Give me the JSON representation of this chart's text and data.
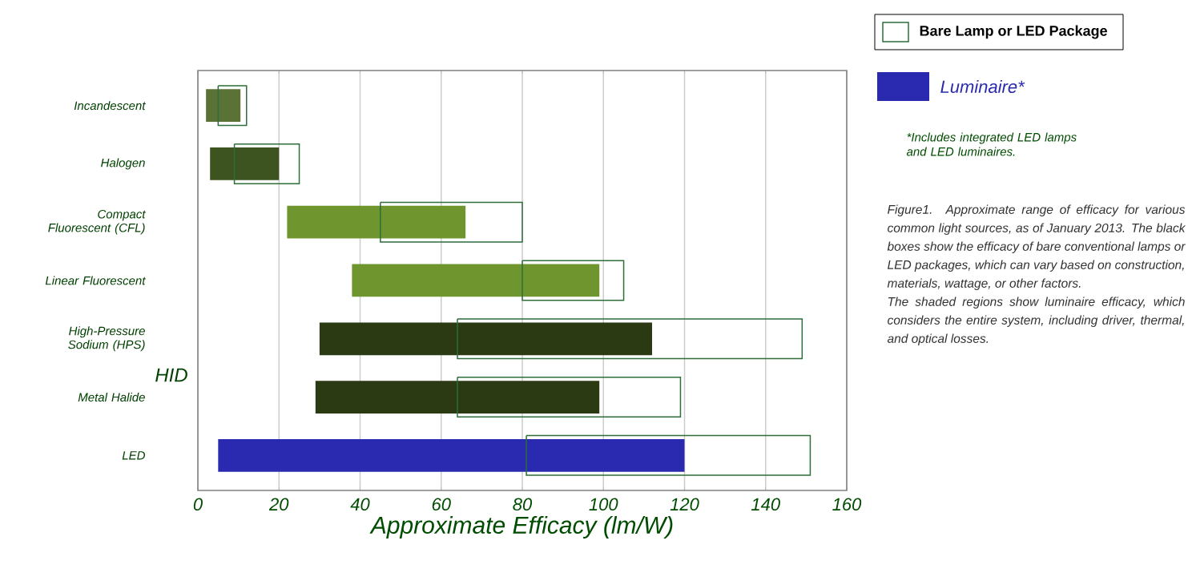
{
  "chart_data": {
    "type": "bar",
    "orientation": "horizontal",
    "xlabel": "Approximate Efficacy (lm/W)",
    "categories": [
      "Incandescent",
      "Halogen",
      "Compact Fluorescent (CFL)",
      "Linear Fluorescent",
      "High-Pressure Sodium (HPS)",
      "Metal Halide",
      "LED"
    ],
    "xlim": [
      0,
      160
    ],
    "xticks": [
      0,
      20,
      40,
      60,
      80,
      100,
      120,
      140,
      160
    ],
    "grid": "x",
    "legend": "top right",
    "series": [
      {
        "name": "Luminaire*",
        "color": "#2a2ab0",
        "colors": [
          "#5a7235",
          "#3e5420",
          "#6f952e",
          "#6f952e",
          "#2b3a12",
          "#2b3a12",
          "#2a2ab0"
        ],
        "base": [
          2,
          3,
          22,
          38,
          30,
          29,
          5
        ],
        "values": [
          8.5,
          17,
          44,
          61,
          82,
          70,
          115
        ]
      },
      {
        "name": "Bare Lamp or LED Package",
        "color": "#2e6e3a",
        "base": [
          5,
          9,
          45,
          80,
          64,
          64,
          81
        ],
        "values": [
          7,
          16,
          35,
          25,
          85,
          55,
          70
        ]
      }
    ],
    "annotations": [
      "HID",
      "*Includes integrated LED lamps and LED luminaires.",
      "Figure1. Approximate range of efficacy for various common light sources, as of January 2013. The black boxes show the efficacy of bare conventional lamps or LED packages, which can vary based on construction, materials, wattage, or other factors.",
      "The shaded regions show luminaire efficacy, which considers the entire system, including driver, thermal, and optical losses."
    ]
  }
}
